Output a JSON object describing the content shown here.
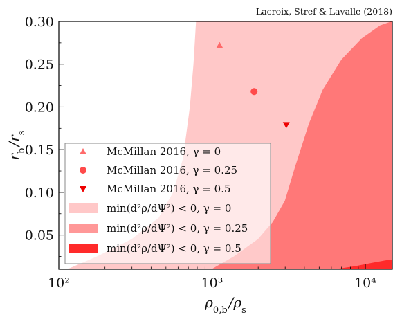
{
  "chart_data": {
    "type": "area",
    "title": "",
    "credit": "Lacroix, Stref & Lavalle (2018)",
    "xlabel": "ρ0,b/ρs",
    "ylabel": "rb/rs",
    "xscale": "log",
    "xlim": [
      100,
      15000
    ],
    "ylim": [
      0.01,
      0.3
    ],
    "xticks": [
      {
        "value": 100,
        "label": "10²"
      },
      {
        "value": 1000,
        "label": "10³"
      },
      {
        "value": 10000,
        "label": "10⁴"
      }
    ],
    "yticks": [
      0.05,
      0.1,
      0.15,
      0.2,
      0.25,
      0.3
    ],
    "ytick_labels": [
      "0.05",
      "0.10",
      "0.15",
      "0.20",
      "0.25",
      "0.30"
    ],
    "legend_position": "lower-left",
    "regions": [
      {
        "name": "min(d²ρ/dΨ²) < 0,  γ = 0",
        "color": "#ffc8c8",
        "legend_color": "#ffc8c8",
        "boundary": [
          {
            "x": 115,
            "y": 0.01
          },
          {
            "x": 180,
            "y": 0.025
          },
          {
            "x": 300,
            "y": 0.045
          },
          {
            "x": 450,
            "y": 0.07
          },
          {
            "x": 560,
            "y": 0.1
          },
          {
            "x": 650,
            "y": 0.14
          },
          {
            "x": 720,
            "y": 0.2
          },
          {
            "x": 760,
            "y": 0.25
          },
          {
            "x": 790,
            "y": 0.3
          }
        ]
      },
      {
        "name": "min(d²ρ/dΨ²) < 0,  γ = 0.25",
        "color": "#ff7878",
        "legend_color": "#ff9898",
        "boundary": [
          {
            "x": 1000,
            "y": 0.01
          },
          {
            "x": 1400,
            "y": 0.025
          },
          {
            "x": 2000,
            "y": 0.045
          },
          {
            "x": 2500,
            "y": 0.065
          },
          {
            "x": 3000,
            "y": 0.09
          },
          {
            "x": 3500,
            "y": 0.13
          },
          {
            "x": 4300,
            "y": 0.18
          },
          {
            "x": 5300,
            "y": 0.22
          },
          {
            "x": 7000,
            "y": 0.255
          },
          {
            "x": 9500,
            "y": 0.28
          },
          {
            "x": 12500,
            "y": 0.295
          },
          {
            "x": 15000,
            "y": 0.3
          }
        ]
      },
      {
        "name": "min(d²ρ/dΨ²) < 0,  γ = 0.5",
        "color": "#ff2a2a",
        "legend_color": "#ff2a2a",
        "boundary": [
          {
            "x": 6500,
            "y": 0.01
          },
          {
            "x": 8500,
            "y": 0.013
          },
          {
            "x": 11000,
            "y": 0.017
          },
          {
            "x": 13500,
            "y": 0.02
          },
          {
            "x": 15000,
            "y": 0.021
          }
        ]
      }
    ],
    "points": [
      {
        "name": "McMillan 2016,  γ = 0",
        "x": 1120,
        "y": 0.272,
        "marker": "triangle-up",
        "color": "#ff6b6b"
      },
      {
        "name": "McMillan 2016,  γ = 0.25",
        "x": 1880,
        "y": 0.218,
        "marker": "circle",
        "color": "#ff4a4a"
      },
      {
        "name": "McMillan 2016,  γ = 0.5",
        "x": 3050,
        "y": 0.179,
        "marker": "triangle-down",
        "color": "#ee0000"
      }
    ]
  }
}
